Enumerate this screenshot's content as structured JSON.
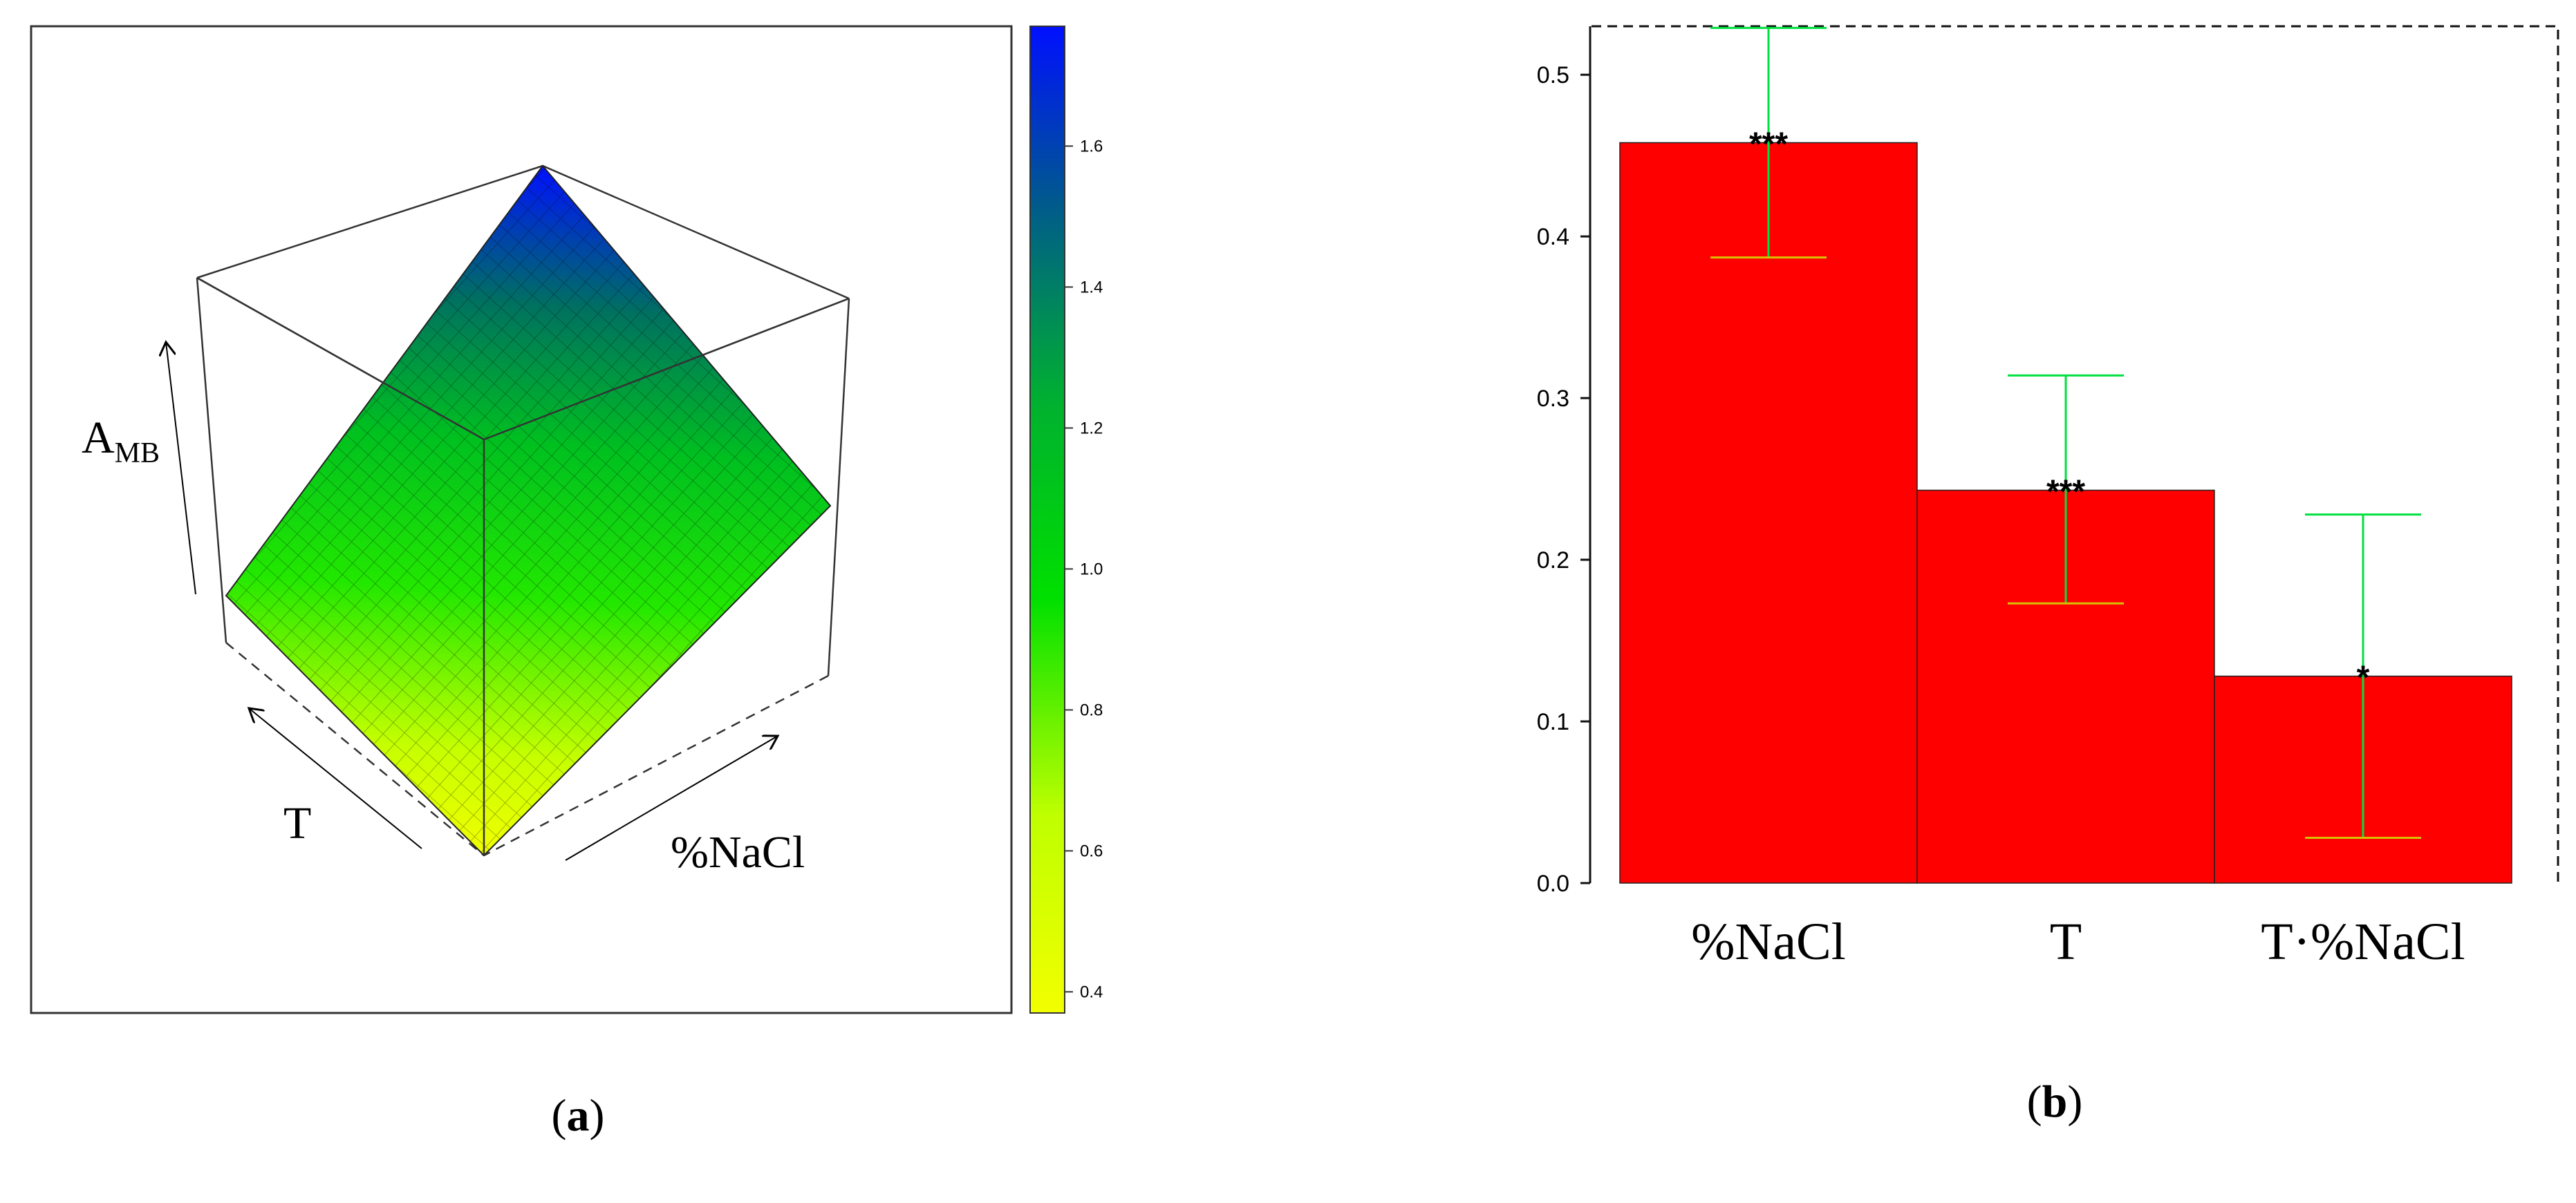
{
  "panel_a": {
    "caption_open": "(",
    "caption_letter": "a",
    "caption_close": ")",
    "axis_z_label": "A",
    "axis_z_sub": "MB",
    "axis_x_label": "T",
    "axis_y_label": "%NaCl",
    "colorbar": {
      "ticks": [
        "1.6",
        "1.4",
        "1.2",
        "1.0",
        "0.8",
        "0.6",
        "0.4"
      ],
      "tick_values": [
        1.6,
        1.4,
        1.2,
        1.0,
        0.8,
        0.6,
        0.4
      ],
      "range": [
        0.37,
        1.77
      ],
      "colors": {
        "low": "#f2ff00",
        "mid": "#00e000",
        "high": "#0010ff"
      }
    },
    "chart_data": {
      "type": "surface",
      "zlabel": "AMB",
      "xlabel": "T",
      "ylabel": "%NaCl",
      "z_range": [
        0.37,
        1.77
      ]
    }
  },
  "panel_b": {
    "caption_open": "(",
    "caption_letter": "b",
    "caption_close": ")",
    "colors": {
      "bar": "#ff0000",
      "whisker": "#00e040",
      "cap": "#d8c000"
    },
    "chart_data": {
      "type": "bar",
      "categories": [
        "%NaCl",
        "T",
        "T·%NaCl"
      ],
      "values": [
        0.458,
        0.243,
        0.128
      ],
      "error_upper": [
        0.529,
        0.314,
        0.228
      ],
      "error_lower": [
        0.387,
        0.173,
        0.028
      ],
      "significance": [
        "***",
        "***",
        "*"
      ],
      "yticks": [
        "0.0",
        "0.1",
        "0.2",
        "0.3",
        "0.4",
        "0.5"
      ],
      "ylim": [
        0,
        0.53
      ]
    }
  }
}
